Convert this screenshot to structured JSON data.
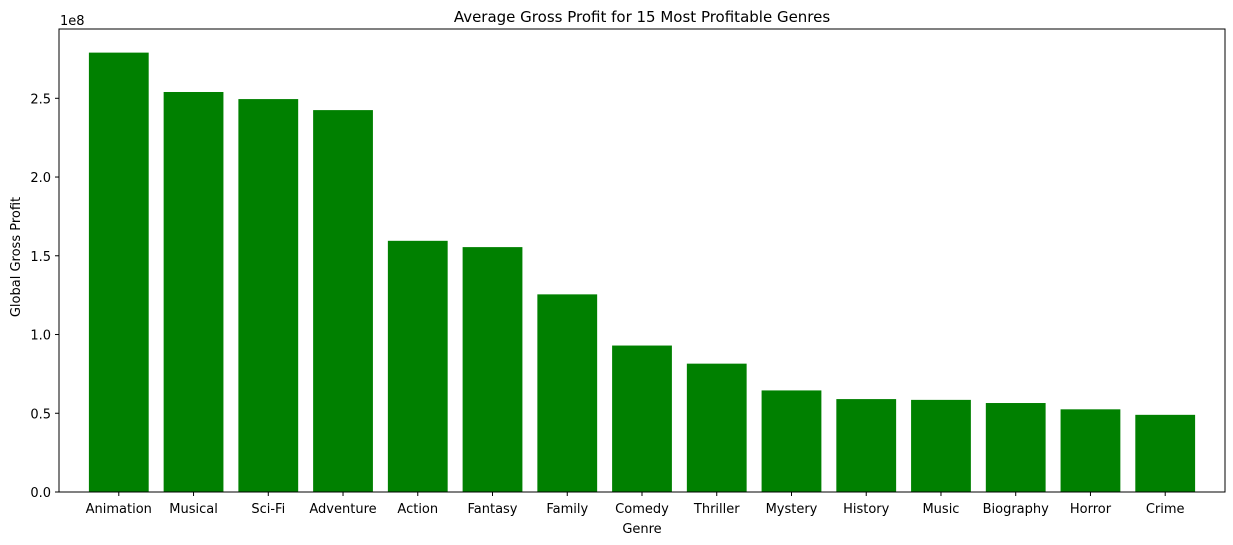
{
  "chart_data": {
    "type": "bar",
    "title": "Average Gross Profit for 15 Most Profitable Genres",
    "xlabel": "Genre",
    "ylabel": "Global Gross Profit",
    "y_offset_label": "1e8",
    "categories": [
      "Animation",
      "Musical",
      "Sci-Fi",
      "Adventure",
      "Action",
      "Fantasy",
      "Family",
      "Comedy",
      "Thriller",
      "Mystery",
      "History",
      "Music",
      "Biography",
      "Horror",
      "Crime"
    ],
    "values": [
      279000000,
      254000000,
      249500000,
      242500000,
      159500000,
      155500000,
      125500000,
      93000000,
      81500000,
      64500000,
      59000000,
      58500000,
      56500000,
      52500000,
      49000000
    ],
    "ylim": [
      0,
      294000000
    ],
    "yticks": [
      0,
      50000000,
      100000000,
      150000000,
      200000000,
      250000000
    ],
    "ytick_labels": [
      "0.0",
      "0.5",
      "1.0",
      "1.5",
      "2.0",
      "2.5"
    ],
    "grid": false,
    "bar_color": "#008000"
  }
}
